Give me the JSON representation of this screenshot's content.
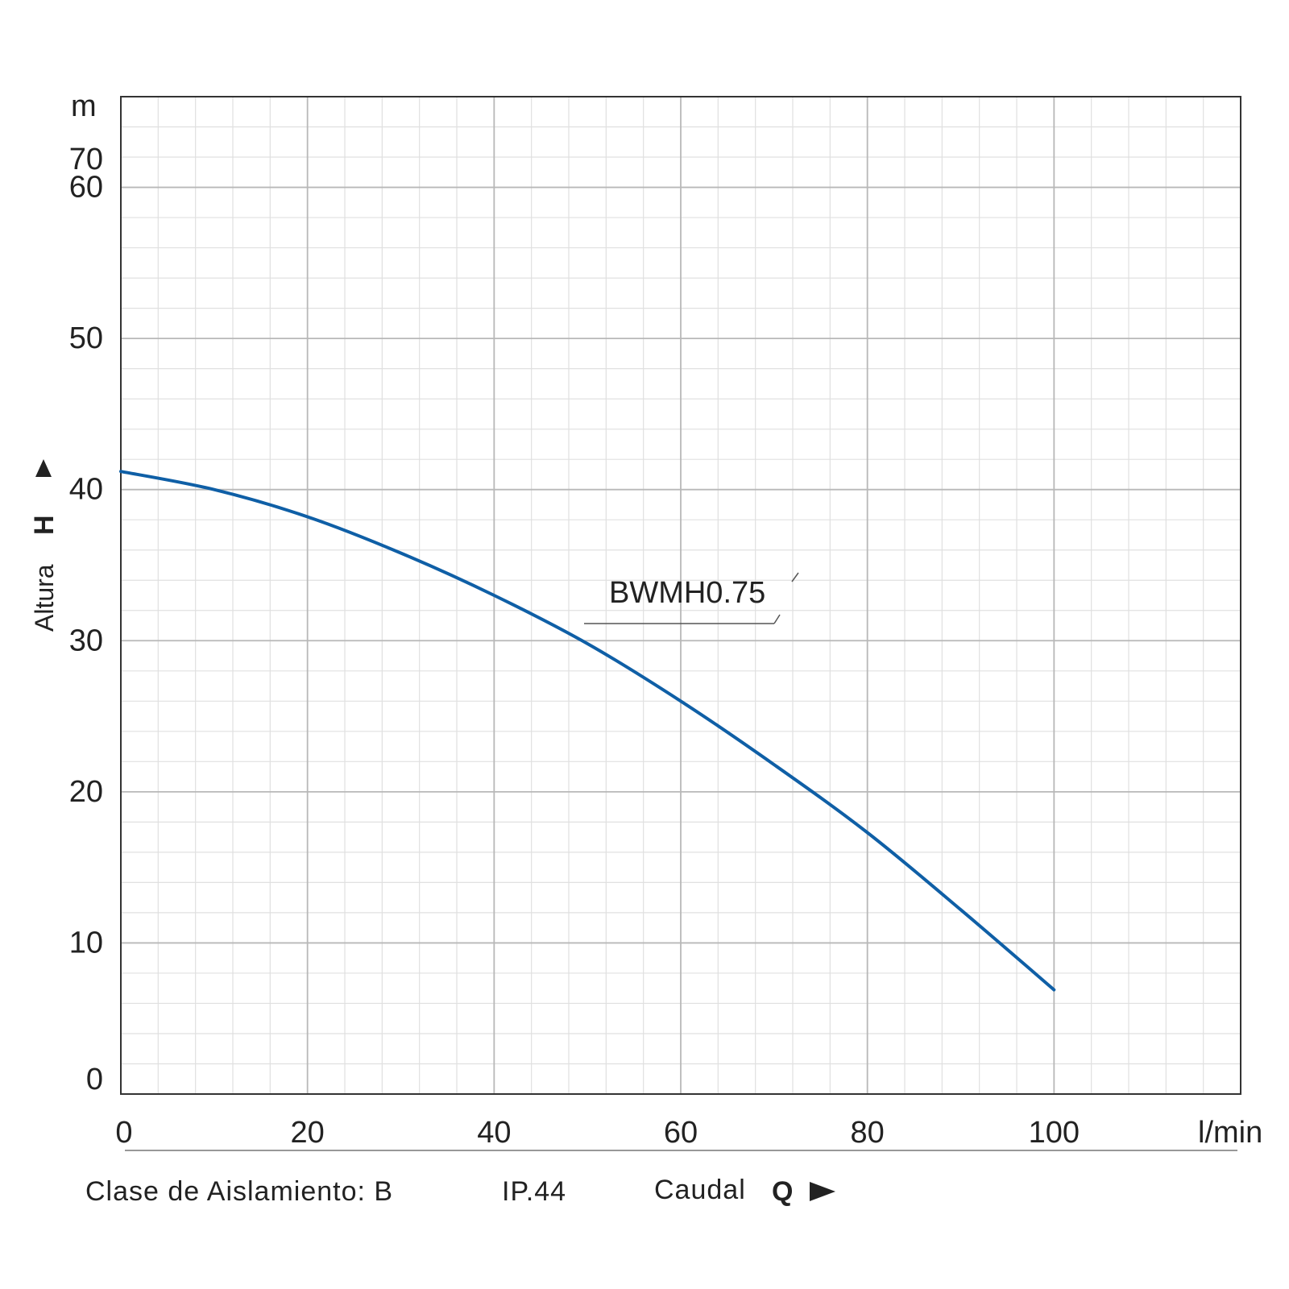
{
  "chart_data": {
    "type": "line",
    "x_unit": "l/min",
    "y_unit": "m",
    "ylabel_text": "Altura",
    "ylabel_symbol": "H",
    "xlim": [
      0,
      120
    ],
    "ylim": [
      0,
      66
    ],
    "x_ticks": [
      0,
      20,
      40,
      60,
      80,
      100
    ],
    "y_ticks": [
      0,
      10,
      20,
      30,
      40,
      50,
      60,
      70
    ],
    "x_tick_labels": [
      "0",
      "20",
      "40",
      "60",
      "80",
      "100"
    ],
    "y_tick_labels": [
      "0",
      "10",
      "20",
      "30",
      "40",
      "50",
      "60",
      "70"
    ],
    "grid": true,
    "series": [
      {
        "name": "BWMH0.75",
        "color": "#0f5fa6",
        "x": [
          0,
          10,
          20,
          30,
          40,
          50,
          60,
          70,
          80,
          90,
          100
        ],
        "y": [
          41.2,
          40.0,
          38.2,
          35.8,
          33.0,
          29.8,
          26.0,
          21.8,
          17.3,
          12.2,
          6.9
        ]
      }
    ]
  },
  "footer": {
    "insulation_class": "Clase de Aislamiento: B",
    "ip_rating": "IP.44",
    "flow_label": "Caudal",
    "flow_symbol": "Q"
  },
  "colors": {
    "grid_major": "#b8b8b8",
    "grid_minor": "#e0e0e0",
    "frame": "#333333",
    "curve": "#0f5fa6"
  }
}
